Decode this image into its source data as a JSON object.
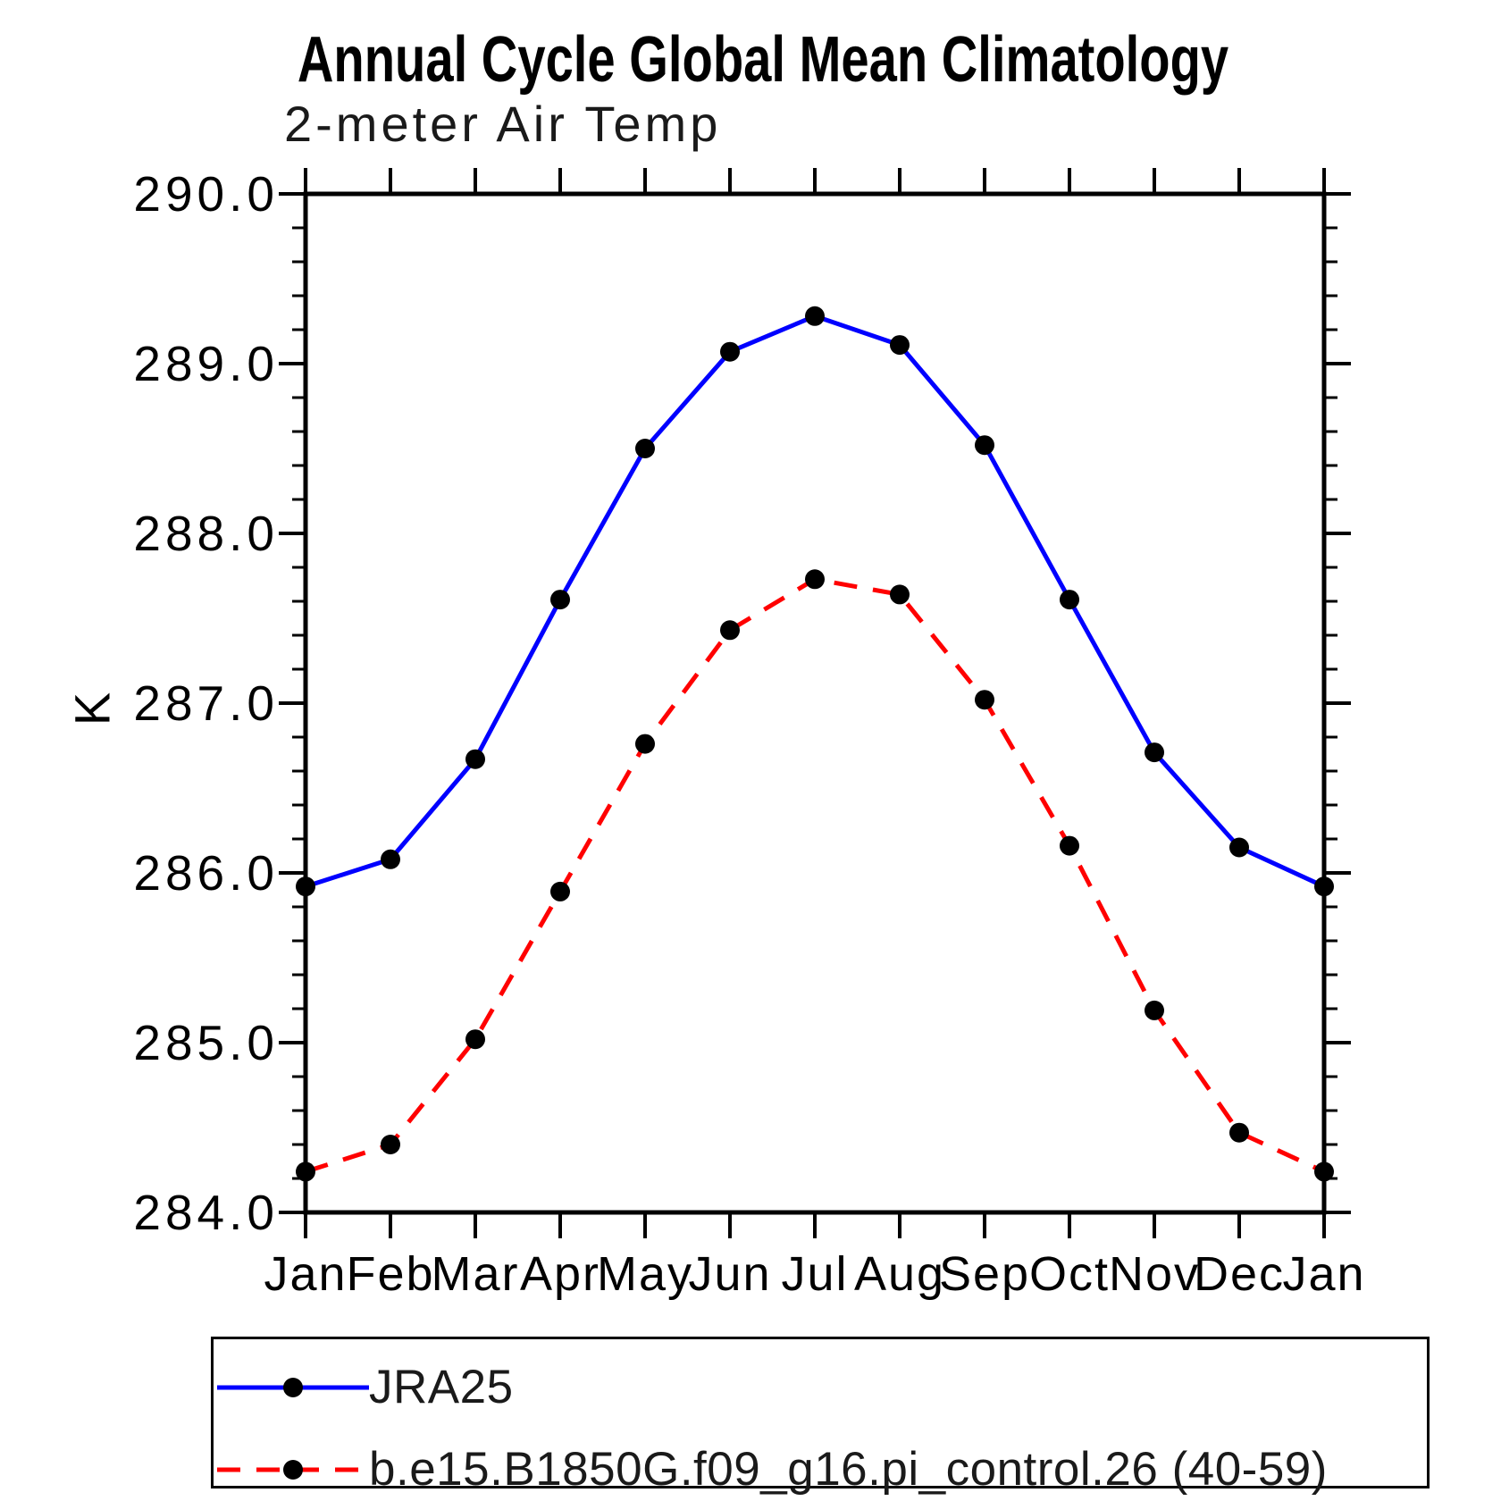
{
  "title": "Annual Cycle Global Mean Climatology",
  "subtitle": "2-meter Air Temp",
  "ylabel": "K",
  "chart_data": {
    "type": "line",
    "categories": [
      "Jan",
      "Feb",
      "Mar",
      "Apr",
      "May",
      "Jun",
      "Jul",
      "Aug",
      "Sep",
      "Oct",
      "Nov",
      "Dec",
      "Jan"
    ],
    "series": [
      {
        "name": "JRA25",
        "color": "#0000ff",
        "line_style": "solid",
        "marker": "filled-circle",
        "marker_color": "#000000",
        "values": [
          285.92,
          286.08,
          286.67,
          287.61,
          288.5,
          289.07,
          289.28,
          289.11,
          288.52,
          287.61,
          286.71,
          286.15,
          285.92
        ]
      },
      {
        "name": "b.e15.B1850G.f09_g16.pi_control.26 (40-59)",
        "color": "#ff0000",
        "line_style": "dashed",
        "marker": "filled-circle",
        "marker_color": "#000000",
        "values": [
          284.24,
          284.4,
          285.02,
          285.89,
          286.76,
          287.43,
          287.73,
          287.64,
          287.02,
          286.16,
          285.19,
          284.47,
          284.24
        ]
      }
    ],
    "xlabel": "",
    "ylabel": "K",
    "ylim": [
      284.0,
      290.0
    ],
    "ytick_major": 1.0,
    "ytick_minor": 0.2,
    "ytick_labels": [
      "290.0",
      "289.0",
      "288.0",
      "287.0",
      "286.0",
      "285.0",
      "284.0"
    ],
    "grid": false,
    "legend_position": "bottom",
    "axis_color": "#000000"
  }
}
